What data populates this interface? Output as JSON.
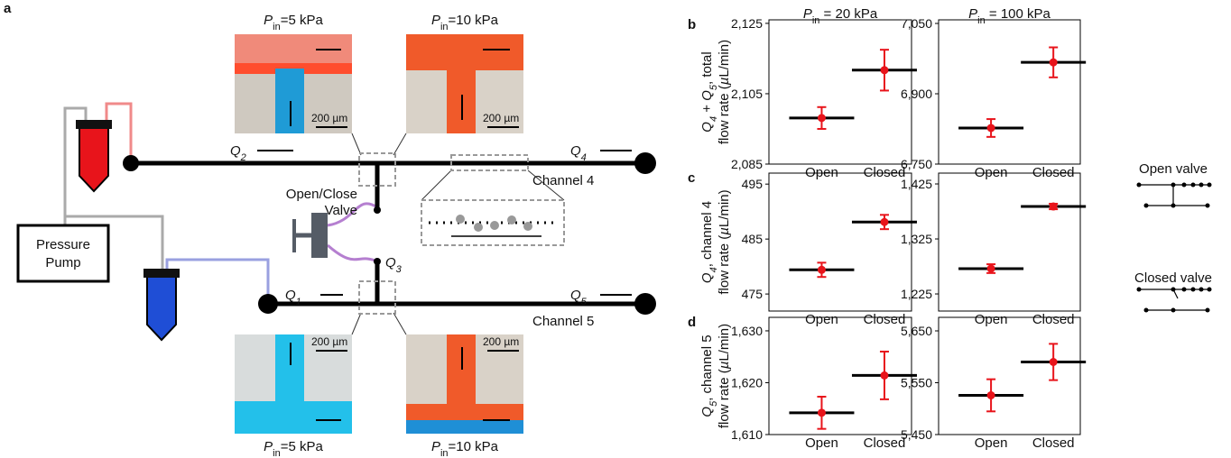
{
  "diagram": {
    "panel_label": "a",
    "photo_top_left": [
      {
        "text": "P",
        "style": "italic"
      },
      {
        "text": "in",
        "style": "sub"
      },
      {
        "text": "=5 kPa"
      }
    ],
    "photo_top_right": [
      {
        "text": "P",
        "style": "italic"
      },
      {
        "text": "in",
        "style": "sub"
      },
      {
        "text": "=10 kPa"
      }
    ],
    "photo_bottom_left": [
      {
        "text": "P",
        "style": "italic"
      },
      {
        "text": "in",
        "style": "sub"
      },
      {
        "text": "=5 kPa"
      }
    ],
    "photo_bottom_right": [
      {
        "text": "P",
        "style": "italic"
      },
      {
        "text": "in",
        "style": "sub"
      },
      {
        "text": "=10 kPa"
      }
    ],
    "scale_bars": [
      "200 µm",
      "200 µm",
      "200 µm",
      "200 µm"
    ],
    "q2": [
      {
        "text": "Q",
        "style": "italic"
      },
      {
        "text": "2",
        "style": "sub italic"
      }
    ],
    "q4": [
      {
        "text": "Q",
        "style": "italic"
      },
      {
        "text": "4",
        "style": "sub italic"
      }
    ],
    "q1": [
      {
        "text": "Q",
        "style": "italic"
      },
      {
        "text": "1",
        "style": "sub italic"
      }
    ],
    "q5": [
      {
        "text": "Q",
        "style": "italic"
      },
      {
        "text": "5",
        "style": "sub italic"
      }
    ],
    "q3": [
      {
        "text": "Q",
        "style": "italic"
      },
      {
        "text": "3",
        "style": "sub italic"
      }
    ],
    "channel_4": "Channel 4",
    "channel_5": "Channel 5",
    "valve_label": [
      "Open/Close",
      "Valve"
    ],
    "pump_label": [
      "Pressure",
      "Pump"
    ],
    "open_valve": "Open valve",
    "closed_valve": "Closed valve"
  },
  "chart_data": [
    {
      "type": "errorbar",
      "panel": "b",
      "title": [
        {
          "text": "P",
          "style": "italic"
        },
        {
          "text": "in",
          "style": "sub"
        },
        {
          "text": " = 20 kPa"
        }
      ],
      "ylabel": [
        [
          {
            "text": "Q",
            "style": "italic"
          },
          {
            "text": "4",
            "style": "sub italic"
          },
          {
            "text": " + "
          },
          {
            "text": "Q",
            "style": "italic"
          },
          {
            "text": "5",
            "style": "sub italic"
          },
          {
            "text": ", total"
          }
        ],
        [
          {
            "text": "flow rate ("
          },
          {
            "text": "µ",
            "style": "italic"
          },
          {
            "text": "L/min)"
          }
        ]
      ],
      "categories": [
        "Open",
        "Closed"
      ],
      "values": [
        2098.1,
        2111.7
      ],
      "errors": [
        3.1,
        5.8
      ],
      "mean_color": "#000000",
      "marker_color": "#e8141b",
      "ylim": [
        2085,
        2126
      ],
      "yticks": [
        {
          "value": 2085,
          "label": "2,085"
        },
        {
          "value": 2105,
          "label": "2,105"
        },
        {
          "value": 2125,
          "label": "2,125"
        }
      ]
    },
    {
      "type": "errorbar",
      "title": [
        {
          "text": "P",
          "style": "italic"
        },
        {
          "text": "in",
          "style": "sub"
        },
        {
          "text": " = 100 kPa"
        }
      ],
      "categories": [
        "Open",
        "Closed"
      ],
      "values": [
        6827,
        6967
      ],
      "errors": [
        19,
        32
      ],
      "mean_color": "#000000",
      "marker_color": "#e8141b",
      "ylim": [
        6750,
        7057.7
      ],
      "yticks": [
        {
          "value": 6750,
          "label": "6,750"
        },
        {
          "value": 6900,
          "label": "6,900"
        },
        {
          "value": 7050,
          "label": "7,050"
        }
      ]
    },
    {
      "type": "errorbar",
      "panel": "c",
      "ylabel": [
        [
          {
            "text": "Q",
            "style": "italic"
          },
          {
            "text": "4",
            "style": "sub italic"
          },
          {
            "text": ", channel 4"
          }
        ],
        [
          {
            "text": "flow rate ("
          },
          {
            "text": "µ",
            "style": "italic"
          },
          {
            "text": "L/min)"
          }
        ]
      ],
      "categories": [
        "Open",
        "Closed"
      ],
      "values": [
        479.4,
        488.1
      ],
      "errors": [
        1.3,
        1.3
      ],
      "mean_color": "#000000",
      "marker_color": "#e8141b",
      "ylim": [
        471.9,
        497.0
      ],
      "yticks": [
        475,
        485,
        495
      ]
    },
    {
      "type": "errorbar",
      "categories": [
        "Open",
        "Closed"
      ],
      "values": [
        1271,
        1384
      ],
      "errors": [
        8,
        5
      ],
      "mean_color": "#000000",
      "marker_color": "#e8141b",
      "ylim": [
        1193.9,
        1444.7
      ],
      "yticks": [
        {
          "value": 1225,
          "label": "1,225"
        },
        {
          "value": 1325,
          "label": "1,325"
        },
        {
          "value": 1425,
          "label": "1,425"
        }
      ]
    },
    {
      "type": "errorbar",
      "panel": "d",
      "ylabel": [
        [
          {
            "text": "Q",
            "style": "italic"
          },
          {
            "text": "5",
            "style": "sub italic"
          },
          {
            "text": ", channel 5"
          }
        ],
        [
          {
            "text": "flow rate ("
          },
          {
            "text": "µ",
            "style": "italic"
          },
          {
            "text": "L/min)"
          }
        ]
      ],
      "categories": [
        "Open",
        "Closed"
      ],
      "values": [
        1614.2,
        1621.4
      ],
      "errors": [
        3.1,
        4.6
      ],
      "mean_color": "#000000",
      "marker_color": "#e8141b",
      "ylim": [
        1610,
        1632.6
      ],
      "yticks": [
        {
          "value": 1610,
          "label": "1,610"
        },
        {
          "value": 1620,
          "label": "1,620"
        },
        {
          "value": 1630,
          "label": "1,630"
        }
      ]
    },
    {
      "type": "errorbar",
      "categories": [
        "Open",
        "Closed"
      ],
      "values": [
        5525.7,
        5590
      ],
      "errors": [
        31,
        35
      ],
      "mean_color": "#000000",
      "marker_color": "#e8141b",
      "ylim": [
        5450,
        5676.1
      ],
      "yticks": [
        {
          "value": 5450,
          "label": "5,450"
        },
        {
          "value": 5550,
          "label": "5,550"
        },
        {
          "value": 5650,
          "label": "5,650"
        }
      ]
    }
  ]
}
